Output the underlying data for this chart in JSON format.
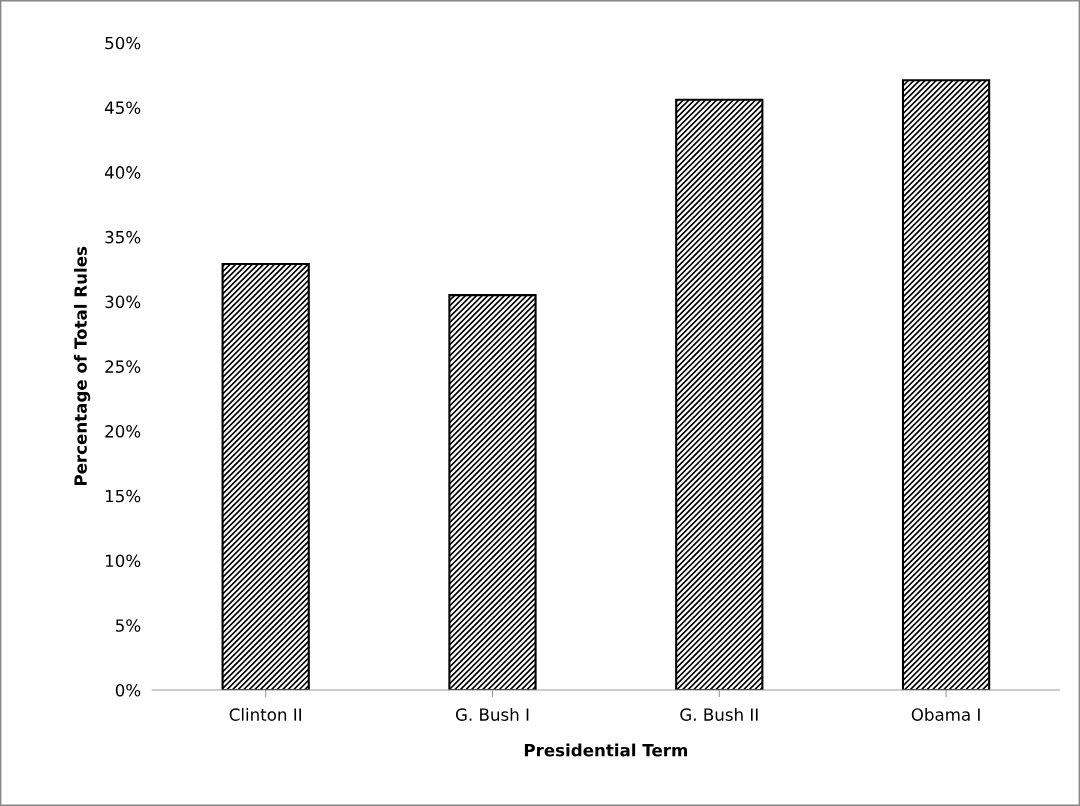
{
  "chart_data": {
    "type": "bar",
    "xlabel": "Presidential Term",
    "ylabel": "Percentage of Total Rules",
    "categories": [
      "Clinton II",
      "G. Bush I",
      "G. Bush II",
      "Obama I"
    ],
    "values": [
      32.9,
      30.5,
      45.6,
      47.1
    ],
    "color": "#000000",
    "ylim": [
      0,
      50
    ],
    "yticks": [
      {
        "value": 0,
        "label": "0%"
      },
      {
        "value": 5,
        "label": "5%"
      },
      {
        "value": 10,
        "label": "10%"
      },
      {
        "value": 15,
        "label": "15%"
      },
      {
        "value": 20,
        "label": "20%"
      },
      {
        "value": 25,
        "label": "25%"
      },
      {
        "value": 30,
        "label": "30%"
      },
      {
        "value": 35,
        "label": "35%"
      },
      {
        "value": 40,
        "label": "40%"
      },
      {
        "value": 45,
        "label": "45%"
      },
      {
        "value": 50,
        "label": "50%"
      }
    ],
    "grid": false,
    "legend": false
  }
}
